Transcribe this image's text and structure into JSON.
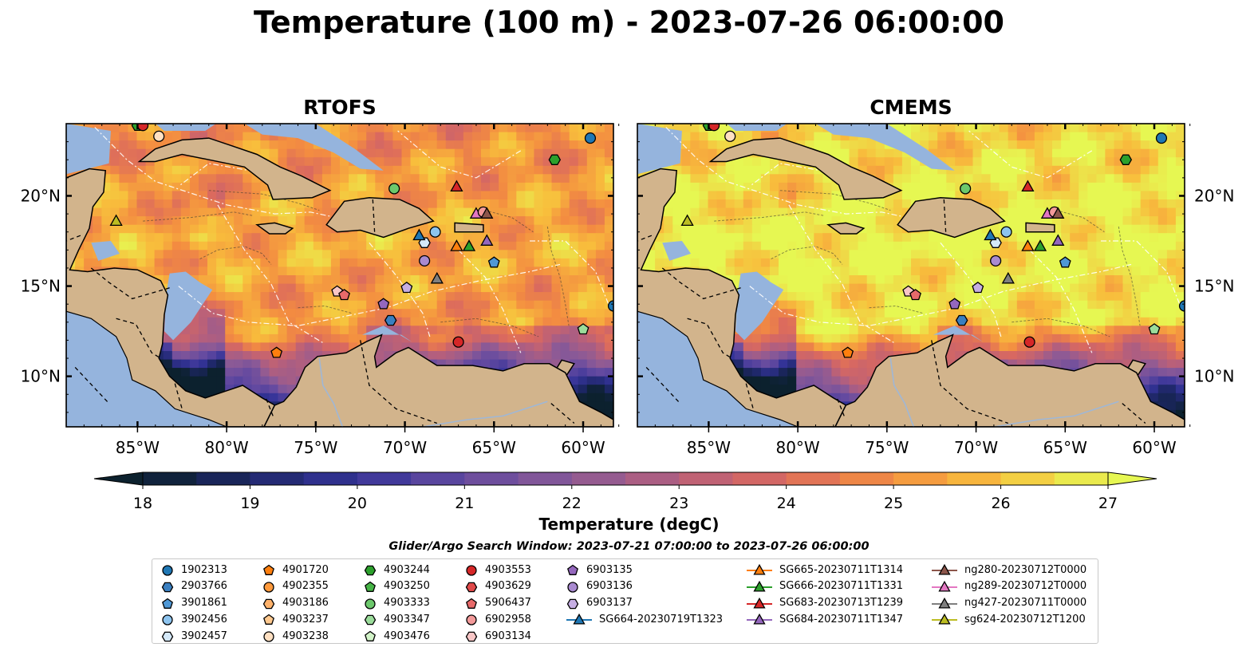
{
  "title": "Temperature (100 m) - 2023-07-26 06:00:00",
  "panels": [
    {
      "id": "rtofs",
      "title": "RTOFS",
      "style": "rtofs"
    },
    {
      "id": "cmems",
      "title": "CMEMS",
      "style": "cmems"
    }
  ],
  "lon_ticks": [
    "85°W",
    "80°W",
    "75°W",
    "70°W",
    "65°W",
    "60°W"
  ],
  "lon_tick_values": [
    -85,
    -80,
    -75,
    -70,
    -65,
    -60
  ],
  "lat_ticks": [
    "20°N",
    "15°N",
    "10°N"
  ],
  "lat_tick_values": [
    20,
    15,
    10
  ],
  "extent": {
    "lon_min": -89,
    "lon_max": -58.3,
    "lat_min": 7.2,
    "lat_max": 24
  },
  "colorbar": {
    "label": "Temperature (degC)",
    "min": 18,
    "max": 27,
    "step": 0.5,
    "ticks": [
      "18",
      "19",
      "20",
      "21",
      "22",
      "23",
      "24",
      "25",
      "26",
      "27"
    ],
    "extend": "both",
    "colormap": "thermal"
  },
  "legend": {
    "title": "Glider/Argo Search Window: 2023-07-21 07:00:00 to 2023-07-26 06:00:00",
    "columns": [
      [
        {
          "label": "1902313",
          "marker": "circle",
          "color": "#1f77b4"
        },
        {
          "label": "2903766",
          "marker": "hexagon",
          "color": "#3a7fc0"
        },
        {
          "label": "3901861",
          "marker": "pentagon",
          "color": "#4f98d6"
        },
        {
          "label": "3902456",
          "marker": "circle",
          "color": "#8dc4ef"
        },
        {
          "label": "3902457",
          "marker": "hexagon",
          "color": "#d5e9f9"
        }
      ],
      [
        {
          "label": "4901720",
          "marker": "pentagon",
          "color": "#ff7f0e"
        },
        {
          "label": "4902355",
          "marker": "circle",
          "color": "#ff9a3c"
        },
        {
          "label": "4903186",
          "marker": "hexagon",
          "color": "#ffb26b"
        },
        {
          "label": "4903237",
          "marker": "pentagon",
          "color": "#ffc98f"
        },
        {
          "label": "4903238",
          "marker": "circle",
          "color": "#ffe0c2"
        }
      ],
      [
        {
          "label": "4903244",
          "marker": "hexagon",
          "color": "#2ca02c"
        },
        {
          "label": "4903250",
          "marker": "pentagon",
          "color": "#46b446"
        },
        {
          "label": "4903333",
          "marker": "circle",
          "color": "#6cc86c"
        },
        {
          "label": "4903347",
          "marker": "hexagon",
          "color": "#9bdc9b"
        },
        {
          "label": "4903476",
          "marker": "pentagon",
          "color": "#d2f3c8"
        }
      ],
      [
        {
          "label": "4903553",
          "marker": "circle",
          "color": "#d62728"
        },
        {
          "label": "4903629",
          "marker": "hexagon",
          "color": "#e04a4a"
        },
        {
          "label": "5906437",
          "marker": "pentagon",
          "color": "#e86a6a"
        },
        {
          "label": "6902958",
          "marker": "circle",
          "color": "#f39a9a"
        },
        {
          "label": "6903134",
          "marker": "hexagon",
          "color": "#f8c6c6"
        }
      ],
      [
        {
          "label": "6903135",
          "marker": "pentagon",
          "color": "#9467bd"
        },
        {
          "label": "6903136",
          "marker": "circle",
          "color": "#a98ad0"
        },
        {
          "label": "6903137",
          "marker": "hexagon",
          "color": "#c6aee3"
        },
        {
          "label": "SG664-20230719T1323",
          "marker": "triangle-line",
          "color": "#1f77b4"
        }
      ],
      [
        {
          "label": "SG665-20230711T1314",
          "marker": "triangle-line",
          "color": "#ff7f0e"
        },
        {
          "label": "SG666-20230711T1331",
          "marker": "triangle-line",
          "color": "#2ca02c"
        },
        {
          "label": "SG683-20230713T1239",
          "marker": "triangle-line",
          "color": "#d62728"
        },
        {
          "label": "SG684-20230711T1347",
          "marker": "triangle-line",
          "color": "#9467bd"
        }
      ],
      [
        {
          "label": "ng280-20230712T0000",
          "marker": "triangle-line",
          "color": "#8c564b"
        },
        {
          "label": "ng289-20230712T0000",
          "marker": "triangle-line",
          "color": "#e377c2"
        },
        {
          "label": "ng427-20230711T0000",
          "marker": "triangle-line",
          "color": "#7f7f7f"
        },
        {
          "label": "sg624-20230712T1200",
          "marker": "triangle-line",
          "color": "#bcbd22"
        }
      ]
    ]
  },
  "markers": [
    {
      "lon": -59.6,
      "lat": 23.2,
      "marker": "circle",
      "color": "#1f77b4"
    },
    {
      "lon": -83.8,
      "lat": 23.3,
      "marker": "circle",
      "color": "#ffe0c2"
    },
    {
      "lon": -85.0,
      "lat": 23.9,
      "marker": "hexagon",
      "color": "#2ca02c"
    },
    {
      "lon": -84.7,
      "lat": 23.9,
      "marker": "circle",
      "color": "#d62728"
    },
    {
      "lon": -61.6,
      "lat": 22.0,
      "marker": "hexagon",
      "color": "#2ca02c"
    },
    {
      "lon": -70.6,
      "lat": 20.4,
      "marker": "circle",
      "color": "#6cc86c"
    },
    {
      "lon": -67.1,
      "lat": 20.5,
      "marker": "triangle",
      "color": "#d62728"
    },
    {
      "lon": -86.2,
      "lat": 18.6,
      "marker": "triangle",
      "color": "#bcbd22"
    },
    {
      "lon": -66.0,
      "lat": 19.0,
      "marker": "triangle",
      "color": "#e377c2"
    },
    {
      "lon": -65.6,
      "lat": 19.1,
      "marker": "circle",
      "color": "#f39a9a"
    },
    {
      "lon": -65.4,
      "lat": 19.0,
      "marker": "triangle",
      "color": "#8c564b"
    },
    {
      "lon": -68.3,
      "lat": 18.0,
      "marker": "circle",
      "color": "#8dc4ef"
    },
    {
      "lon": -68.9,
      "lat": 17.4,
      "marker": "hexagon",
      "color": "#d5e9f9"
    },
    {
      "lon": -69.2,
      "lat": 17.8,
      "marker": "triangle",
      "color": "#1f77b4"
    },
    {
      "lon": -67.1,
      "lat": 17.2,
      "marker": "triangle",
      "color": "#ff7f0e"
    },
    {
      "lon": -66.4,
      "lat": 17.2,
      "marker": "triangle",
      "color": "#2ca02c"
    },
    {
      "lon": -65.4,
      "lat": 17.5,
      "marker": "triangle",
      "color": "#9467bd"
    },
    {
      "lon": -65.0,
      "lat": 16.3,
      "marker": "pentagon",
      "color": "#4f98d6"
    },
    {
      "lon": -68.9,
      "lat": 16.4,
      "marker": "circle",
      "color": "#a98ad0"
    },
    {
      "lon": -68.2,
      "lat": 15.4,
      "marker": "triangle",
      "color": "#7f7f7f"
    },
    {
      "lon": -73.8,
      "lat": 14.7,
      "marker": "pentagon",
      "color": "#f8c6c6"
    },
    {
      "lon": -73.4,
      "lat": 14.5,
      "marker": "pentagon",
      "color": "#e86a6a"
    },
    {
      "lon": -69.9,
      "lat": 14.9,
      "marker": "pentagon",
      "color": "#c6aee3"
    },
    {
      "lon": -71.2,
      "lat": 14.0,
      "marker": "pentagon",
      "color": "#9467bd"
    },
    {
      "lon": -70.8,
      "lat": 13.1,
      "marker": "hexagon",
      "color": "#3a7fc0"
    },
    {
      "lon": -58.3,
      "lat": 13.9,
      "marker": "circle",
      "color": "#1f77b4"
    },
    {
      "lon": -60.0,
      "lat": 12.6,
      "marker": "pentagon",
      "color": "#9bdc9b"
    },
    {
      "lon": -67.0,
      "lat": 11.9,
      "marker": "circle",
      "color": "#d62728"
    },
    {
      "lon": -77.2,
      "lat": 11.3,
      "marker": "pentagon",
      "color": "#ff7f0e"
    }
  ]
}
